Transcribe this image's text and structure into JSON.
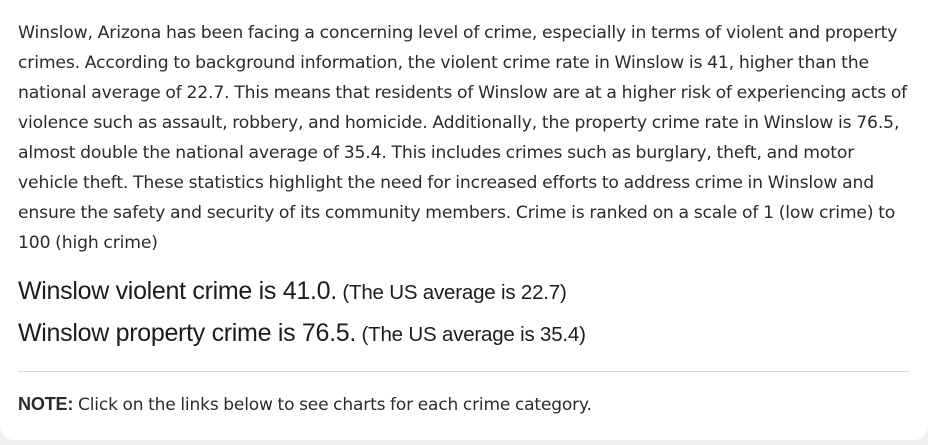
{
  "intro_paragraph": "Winslow, Arizona has been facing a concerning level of crime, especially in terms of violent and property crimes. According to background information, the violent crime rate in Winslow is 41, higher than the national average of 22.7. This means that residents of Winslow are at a higher risk of experiencing acts of violence such as assault, robbery, and homicide. Additionally, the property crime rate in Winslow is 76.5, almost double the national average of 35.4. This includes crimes such as burglary, theft, and motor vehicle theft. These statistics highlight the need for increased efforts to address crime in Winslow and ensure the safety and security of its community members. Crime is ranked on a scale of 1 (low crime) to 100 (high crime)",
  "stats": {
    "violent": {
      "main": "Winslow violent crime is 41.0.",
      "average": " (The US average is 22.7)"
    },
    "property": {
      "main": "Winslow property crime is 76.5.",
      "average": " (The US average is 35.4)"
    }
  },
  "note": {
    "label": "NOTE:",
    "text": " Click on the links below to see charts for each crime category."
  }
}
